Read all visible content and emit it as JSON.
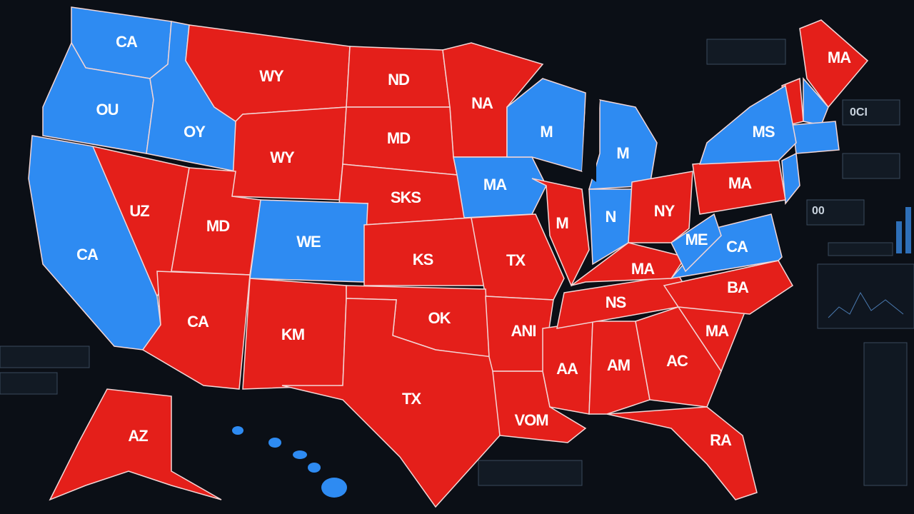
{
  "map": {
    "colors": {
      "red": "#e41f1a",
      "blue": "#2e8bf2"
    },
    "regions": [
      {
        "label": "CA",
        "color": "blue"
      },
      {
        "label": "OU",
        "color": "blue"
      },
      {
        "label": "OY",
        "color": "blue"
      },
      {
        "label": "WY",
        "color": "red"
      },
      {
        "label": "ND",
        "color": "red"
      },
      {
        "label": "NA",
        "color": "red"
      },
      {
        "label": "WY",
        "color": "red"
      },
      {
        "label": "MD",
        "color": "red"
      },
      {
        "label": "SKS",
        "color": "red"
      },
      {
        "label": "MA",
        "color": "blue"
      },
      {
        "label": "M",
        "color": "blue"
      },
      {
        "label": "M",
        "color": "blue"
      },
      {
        "label": "UZ",
        "color": "red"
      },
      {
        "label": "MD",
        "color": "red"
      },
      {
        "label": "WE",
        "color": "blue"
      },
      {
        "label": "KS",
        "color": "red"
      },
      {
        "label": "TX",
        "color": "red"
      },
      {
        "label": "M",
        "color": "red"
      },
      {
        "label": "N",
        "color": "blue"
      },
      {
        "label": "NY",
        "color": "red"
      },
      {
        "label": "CA",
        "color": "blue"
      },
      {
        "label": "CA",
        "color": "red"
      },
      {
        "label": "KM",
        "color": "red"
      },
      {
        "label": "OK",
        "color": "red"
      },
      {
        "label": "TX",
        "color": "red"
      },
      {
        "label": "ANI",
        "color": "red"
      },
      {
        "label": "VOM",
        "color": "red"
      },
      {
        "label": "AA",
        "color": "red"
      },
      {
        "label": "AM",
        "color": "red"
      },
      {
        "label": "AC",
        "color": "red"
      },
      {
        "label": "RA",
        "color": "red"
      },
      {
        "label": "MA",
        "color": "red"
      },
      {
        "label": "NS",
        "color": "red"
      },
      {
        "label": "MA",
        "color": "red"
      },
      {
        "label": "BA",
        "color": "red"
      },
      {
        "label": "CA",
        "color": "blue"
      },
      {
        "label": "ME",
        "color": "blue"
      },
      {
        "label": "MA",
        "color": "red"
      },
      {
        "label": "MS",
        "color": "blue"
      },
      {
        "label": "MA",
        "color": "red"
      },
      {
        "label": "AZ",
        "color": "red"
      }
    ],
    "panel_labels": [
      "00",
      "0CI"
    ]
  }
}
